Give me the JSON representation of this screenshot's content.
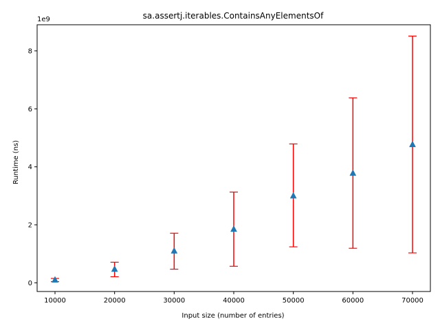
{
  "chart_data": {
    "type": "scatter",
    "title": "sa.assertj.iterables.ContainsAnyElementsOf",
    "xlabel": "Input size (number of entries)",
    "ylabel": "Runtime (ns)",
    "y_offset_label": "1e9",
    "x": [
      10000,
      20000,
      30000,
      40000,
      50000,
      60000,
      70000
    ],
    "series": [
      {
        "marker": "triangle",
        "color": "#1f77b4",
        "values": [
          100000000,
          470000000,
          1100000000,
          1850000000,
          3000000000,
          3780000000,
          4770000000
        ],
        "error_low": [
          40000000,
          210000000,
          470000000,
          570000000,
          1240000000,
          1190000000,
          1030000000
        ],
        "error_high": [
          150000000,
          710000000,
          1710000000,
          3130000000,
          4790000000,
          6380000000,
          8510000000
        ],
        "error_color": "#ff0000"
      }
    ],
    "xlim": [
      7000,
      73000
    ],
    "ylim": [
      -300000000,
      8900000000
    ],
    "xticks": [
      10000,
      20000,
      30000,
      40000,
      50000,
      60000,
      70000
    ],
    "xtick_labels": [
      "10000",
      "20000",
      "30000",
      "40000",
      "50000",
      "60000",
      "70000"
    ],
    "yticks": [
      0,
      2000000000,
      4000000000,
      6000000000,
      8000000000
    ],
    "ytick_labels": [
      "0",
      "2",
      "4",
      "6",
      "8"
    ],
    "grid": false,
    "legend": "none"
  }
}
